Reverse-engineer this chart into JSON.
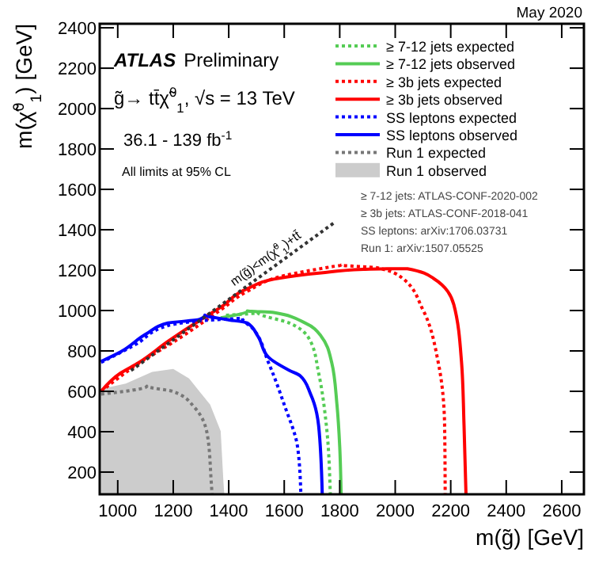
{
  "chart_data": {
    "type": "line",
    "xlabel": "m(g̃) [GeV]",
    "ylabel": "m(χ̃$^{0}$$_{1}$) [GeV]",
    "xlim": [
      935,
      2680
    ],
    "ylim": [
      90,
      2420
    ],
    "xticks": [
      1000,
      1200,
      1400,
      1600,
      1800,
      2000,
      2200,
      2400,
      2600
    ],
    "yticks": [
      200,
      400,
      600,
      800,
      1000,
      1200,
      1400,
      1600,
      1800,
      2000,
      2200,
      2400
    ],
    "grid": false,
    "legend": "top right",
    "series": [
      {
        "name": "≥ 7-12 jets expected",
        "color": "#55cc55",
        "line_style": "dotted",
        "x": [
          1390,
          1505,
          1619,
          1695,
          1724,
          1752,
          1766
        ],
        "values": [
          977,
          990,
          938,
          847,
          690,
          429,
          90
        ]
      },
      {
        "name": "≥ 7-12 jets observed",
        "color": "#55cc55",
        "line_style": "solid",
        "x": [
          1371,
          1467,
          1562,
          1676,
          1733,
          1771,
          1790,
          1800,
          1805
        ],
        "values": [
          964,
          998,
          990,
          938,
          873,
          743,
          534,
          325,
          90
        ]
      },
      {
        "name": "≥ 3b jets expected",
        "color": "#ff0000",
        "line_style": "dotted",
        "x": [
          940,
          1067,
          1219,
          1371,
          1467,
          1600,
          1771,
          1804,
          1933,
          2026,
          2100,
          2155,
          2178,
          2180
        ],
        "values": [
          600,
          730,
          860,
          1003,
          1095,
          1173,
          1217,
          1225,
          1212,
          1160,
          1003,
          743,
          429,
          90
        ]
      },
      {
        "name": "≥ 3b jets observed",
        "color": "#ff0000",
        "line_style": "solid",
        "x": [
          940,
          1010,
          1076,
          1181,
          1295,
          1371,
          1467,
          1581,
          1733,
          1886,
          1970,
          2044,
          2137,
          2211,
          2239,
          2248,
          2255
        ],
        "values": [
          600,
          690,
          742,
          847,
          951,
          1016,
          1108,
          1160,
          1186,
          1204,
          1207,
          1207,
          1160,
          1030,
          743,
          429,
          90
        ]
      },
      {
        "name": "SS leptons expected",
        "color": "#0000ff",
        "line_style": "dotted",
        "x": [
          940,
          1067,
          1181,
          1314,
          1448,
          1486,
          1543,
          1600,
          1648,
          1660
        ],
        "values": [
          743,
          834,
          925,
          951,
          964,
          912,
          743,
          534,
          325,
          90
        ]
      },
      {
        "name": "SS leptons observed",
        "color": "#0000ff",
        "line_style": "solid",
        "x": [
          940,
          1010,
          1105,
          1181,
          1295,
          1314,
          1390,
          1467,
          1505,
          1543,
          1619,
          1657,
          1695,
          1724,
          1737
        ],
        "values": [
          748,
          795,
          886,
          938,
          956,
          977,
          956,
          938,
          873,
          769,
          703,
          677,
          586,
          429,
          90
        ]
      },
      {
        "name": "Run 1 expected",
        "color": "#777777",
        "line_style": "dotted",
        "x": [
          940,
          1105,
          1200,
          1276,
          1324,
          1337,
          1340
        ],
        "values": [
          586,
          625,
          599,
          521,
          377,
          150,
          90
        ]
      },
      {
        "name": "Run 1 observed",
        "type": "area",
        "color": "#cccccc",
        "x": [
          940,
          1029,
          1124,
          1200,
          1257,
          1333,
          1371,
          1381,
          1384
        ],
        "values": [
          612,
          638,
          696,
          711,
          664,
          534,
          403,
          150,
          90
        ]
      },
      {
        "type": "line",
        "color": "#333333",
        "line_style": "dotted",
        "x": [
          1048,
          1781
        ],
        "values": [
          703,
          1436
        ]
      }
    ],
    "annotations": [
      "May 2020",
      "ATLAS Preliminary",
      "g̃→ tt̄χ̃$^{0}$$_{1}$, √s = 13 TeV",
      "36.1 - 139 fb$^{-1}$",
      "All limits at 95% CL",
      "≥ 7-12 jets: ATLAS-CONF-2020-002",
      "≥ 3b jets: ATLAS-CONF-2018-041",
      "SS leptons: arXiv:1706.03731",
      "Run 1: arXiv:1507.05525",
      {
        "text": "m(g̃)<m(χ̃$^{0}$$_{1}$)+tt̄",
        "x": 1420,
        "y": 1120
      }
    ]
  }
}
